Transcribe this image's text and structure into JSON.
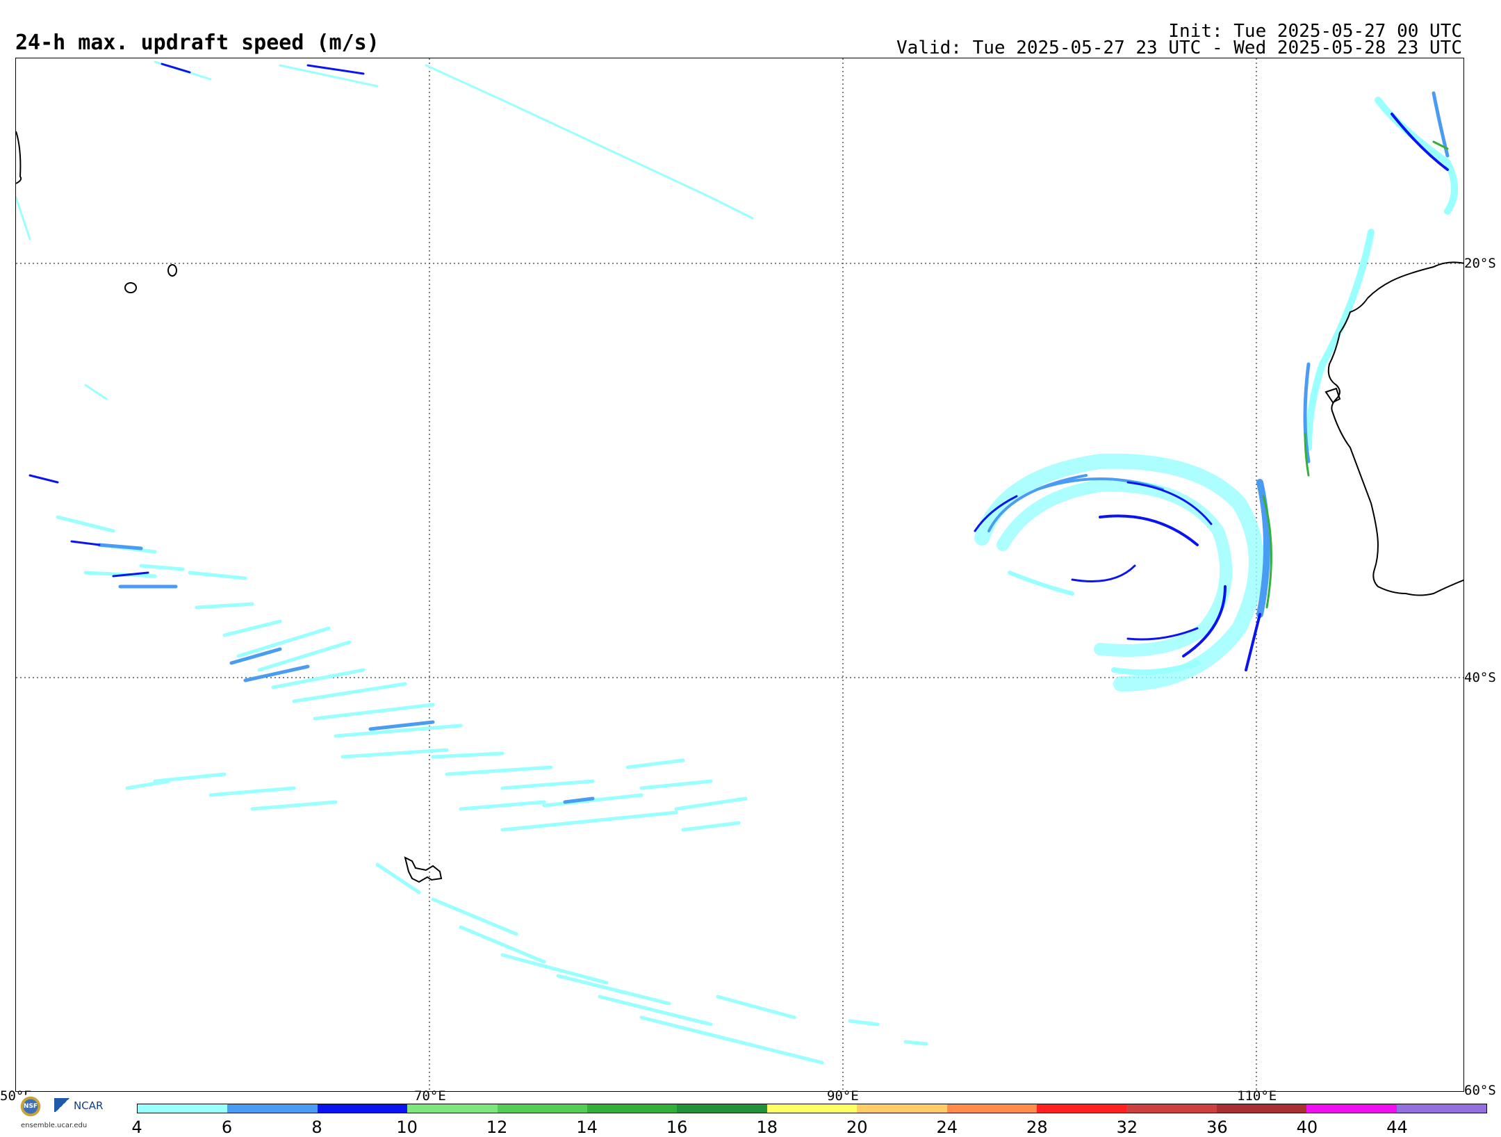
{
  "header": {
    "title": "24-h max. updraft speed (m/s)",
    "init": "Init: Tue 2025-05-27 00 UTC",
    "valid": "Valid: Tue 2025-05-27 23 UTC - Wed 2025-05-28 23 UTC"
  },
  "map": {
    "lon_labels": [
      "50°E",
      "70°E",
      "90°E",
      "110°E"
    ],
    "lat_labels": [
      "20°S",
      "40°S",
      "60°S"
    ],
    "gridlines": "dotted",
    "features": [
      "western-australia-coastline",
      "mauritius",
      "reunion",
      "kerguelen-islands",
      "madagascar-edge",
      "cyclonic-updraft-swirl",
      "frontal-updraft-bands"
    ]
  },
  "colorbar": {
    "ticks": [
      "4",
      "6",
      "8",
      "10",
      "12",
      "14",
      "16",
      "18",
      "20",
      "24",
      "28",
      "32",
      "36",
      "40",
      "44"
    ],
    "colors": [
      "#99ffff",
      "#4a9bf2",
      "#0a14f0",
      "#7ee67e",
      "#55cc55",
      "#33b03a",
      "#23913a",
      "#ffff66",
      "#ffcc66",
      "#ff8c4a",
      "#ff2020",
      "#cc4040",
      "#a83030",
      "#ee10ee",
      "#9370db"
    ]
  },
  "logos": {
    "nsf": "NSF",
    "ncar": "NCAR",
    "url": "ensemble.ucar.edu"
  }
}
